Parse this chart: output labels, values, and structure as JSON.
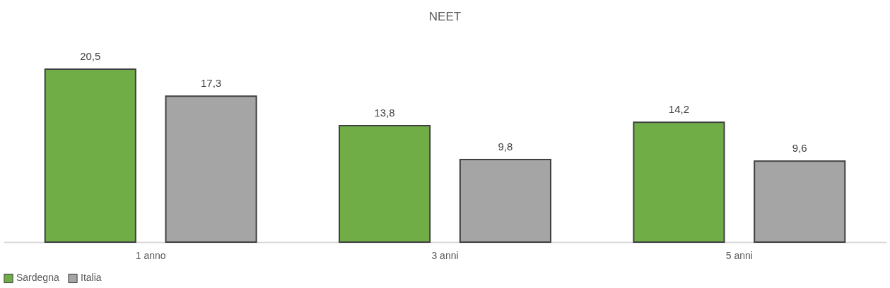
{
  "chart_data": {
    "type": "bar",
    "title": "NEET",
    "categories": [
      "1 anno",
      "3 anni",
      "5 anni"
    ],
    "series": [
      {
        "name": "Sardegna",
        "color": "#70ad47",
        "values": [
          20.5,
          13.8,
          14.2
        ],
        "value_labels": [
          "20,5",
          "13,8",
          "14,2"
        ]
      },
      {
        "name": "Italia",
        "color": "#a5a5a5",
        "values": [
          17.3,
          9.8,
          9.6
        ],
        "value_labels": [
          "17,3",
          "9,8",
          "9,6"
        ]
      }
    ],
    "grid": false,
    "legend": "bottom"
  }
}
